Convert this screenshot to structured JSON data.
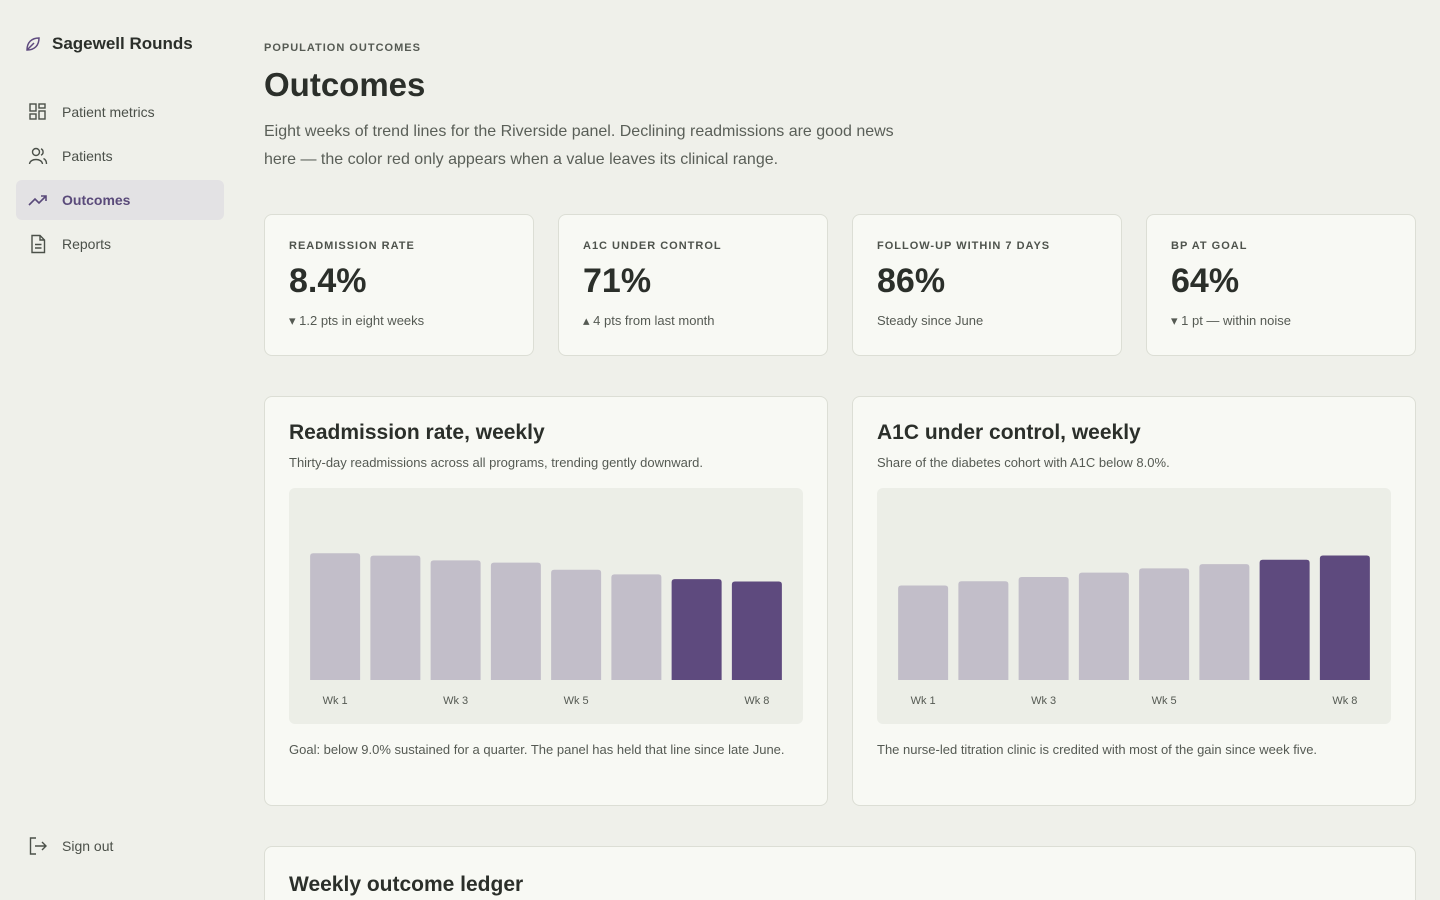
{
  "sidebar": {
    "brand": "Sagewell Rounds",
    "nav": [
      "Patient metrics",
      "Patients",
      "Outcomes",
      "Reports"
    ],
    "sign_out": "Sign out"
  },
  "header": {
    "eyebrow": "POPULATION OUTCOMES",
    "title": "Outcomes",
    "description": "Eight weeks of trend lines for the Riverside panel. Declining readmissions are good news here — the color red only appears when a value leaves its clinical range."
  },
  "kpis": [
    {
      "label": "READMISSION RATE",
      "value": "8.4%",
      "note": "▾ 1.2 pts in eight weeks"
    },
    {
      "label": "A1C UNDER CONTROL",
      "value": "71%",
      "note": "▴ 4 pts from last month"
    },
    {
      "label": "FOLLOW-UP WITHIN 7 DAYS",
      "value": "86%",
      "note": "Steady since June"
    },
    {
      "label": "BP AT GOAL",
      "value": "64%",
      "note": "▾ 1 pt — within noise"
    }
  ],
  "chart_data": [
    {
      "type": "bar",
      "title": "Readmission rate, weekly",
      "subtitle": "Thirty-day readmissions across all programs, trending gently downward.",
      "categories": [
        "Wk 1",
        null,
        "Wk 3",
        null,
        "Wk 5",
        null,
        null,
        "Wk 8"
      ],
      "values": [
        9.6,
        9.5,
        9.3,
        9.2,
        8.9,
        8.7,
        8.5,
        8.4
      ],
      "colors": [
        "#c2bec9",
        "#c2bec9",
        "#c2bec9",
        "#c2bec9",
        "#c2bec9",
        "#c2bec9",
        "#5e4a7e",
        "#5e4a7e"
      ],
      "ylim": [
        4.2,
        11.7
      ],
      "note": "Goal: below 9.0% sustained for a quarter. The panel has held that line since late June."
    },
    {
      "type": "bar",
      "title": "A1C under control, weekly",
      "subtitle": "Share of the diabetes cohort with A1C below 8.0%.",
      "categories": [
        "Wk 1",
        null,
        "Wk 3",
        null,
        "Wk 5",
        null,
        null,
        "Wk 8"
      ],
      "values": [
        64,
        65,
        66,
        67,
        68,
        69,
        70,
        71
      ],
      "colors": [
        "#c2bec9",
        "#c2bec9",
        "#c2bec9",
        "#c2bec9",
        "#c2bec9",
        "#c2bec9",
        "#5e4a7e",
        "#5e4a7e"
      ],
      "ylim": [
        42,
        83
      ],
      "note": "The nurse-led titration clinic is credited with most of the gain since week five."
    }
  ],
  "ledger": {
    "title": "Weekly outcome ledger"
  }
}
